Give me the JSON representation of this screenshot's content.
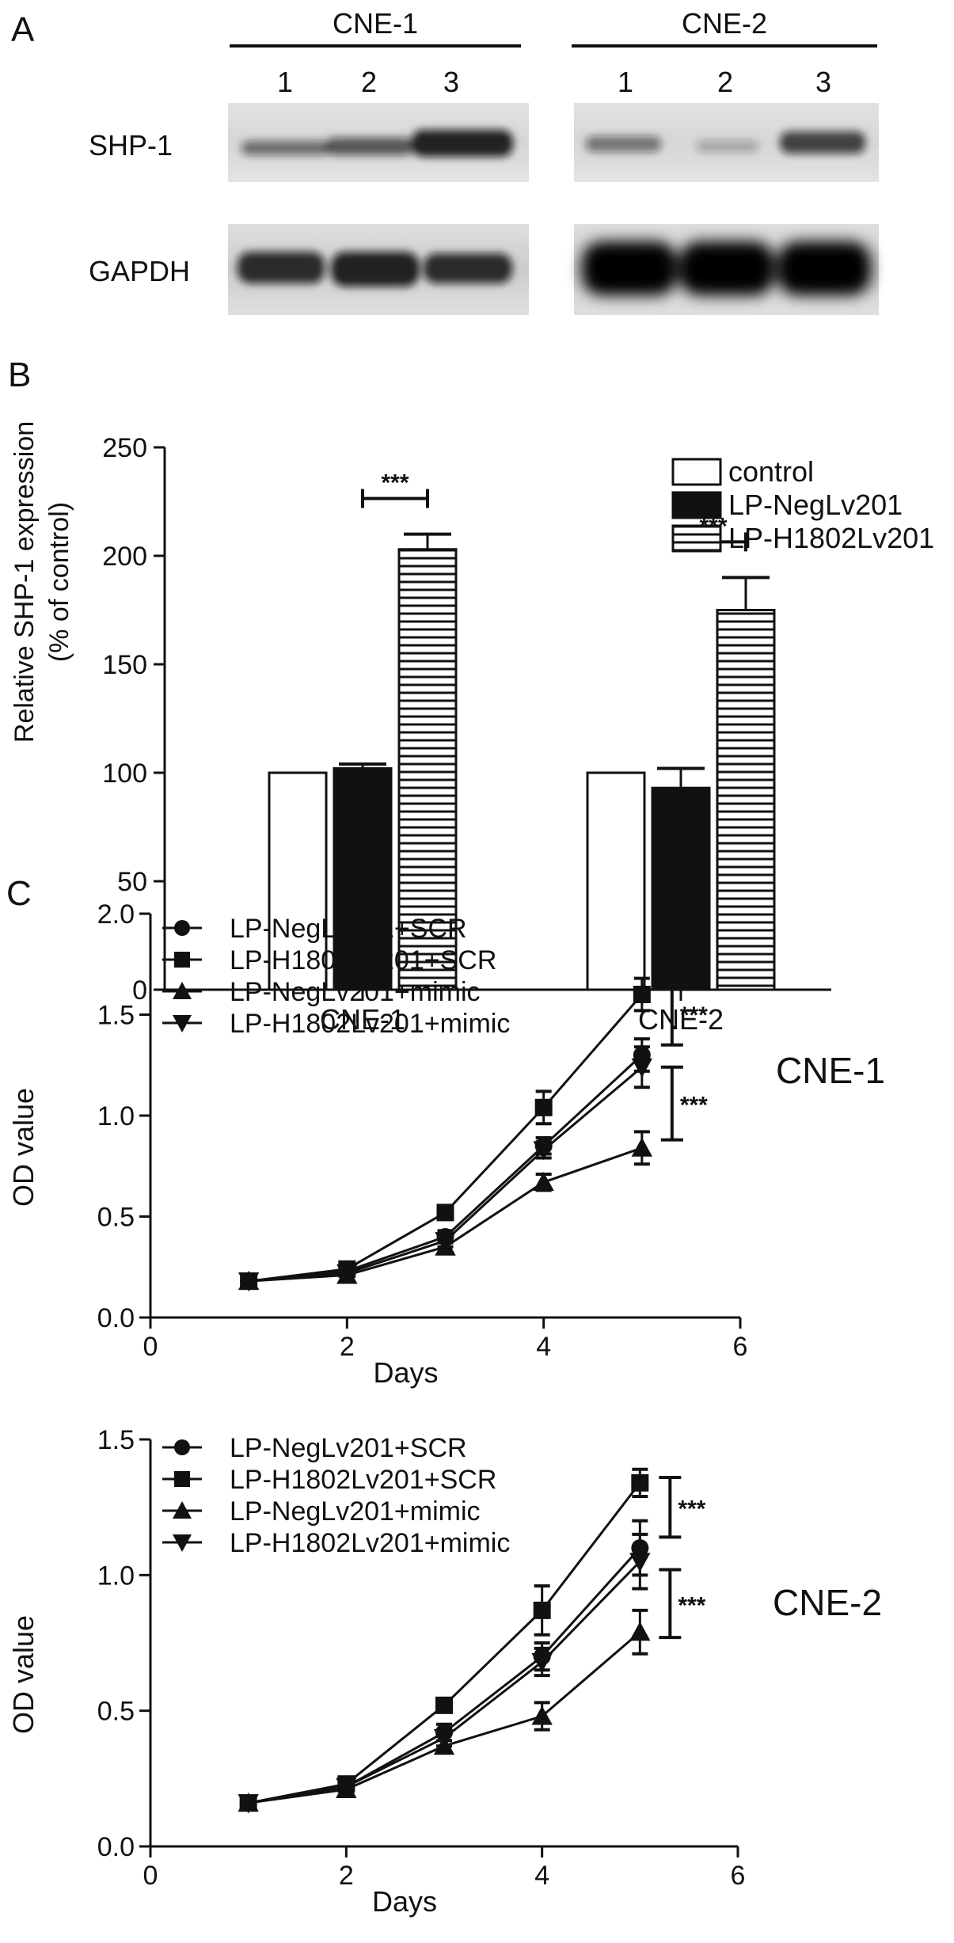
{
  "blot": {
    "panel_label": "A",
    "groups": [
      {
        "name": "CNE-1",
        "lanes": [
          "1",
          "2",
          "3"
        ]
      },
      {
        "name": "CNE-2",
        "lanes": [
          "1",
          "2",
          "3"
        ]
      }
    ],
    "rows": [
      "SHP-1",
      "GAPDH"
    ],
    "band_intensity": {
      "SHP-1": {
        "CNE-1": [
          0.55,
          0.65,
          0.9
        ],
        "CNE-2": [
          0.5,
          0.28,
          0.75
        ]
      },
      "GAPDH": {
        "CNE-1": [
          0.85,
          0.9,
          0.85
        ],
        "CNE-2": [
          1.0,
          1.0,
          1.0
        ]
      }
    }
  },
  "chart_data": [
    {
      "panel_label": "B",
      "type": "bar",
      "categories": [
        "CNE-1",
        "CNE-2"
      ],
      "series": [
        {
          "name": "control",
          "values": [
            100,
            100
          ],
          "errors": [
            0,
            0
          ],
          "fill": "open"
        },
        {
          "name": "LP-NegLv201",
          "values": [
            102,
            93
          ],
          "errors": [
            2,
            9
          ],
          "fill": "solid"
        },
        {
          "name": "LP-H1802Lv201",
          "values": [
            203,
            175
          ],
          "errors": [
            7,
            15
          ],
          "fill": "horizontal-stripes"
        }
      ],
      "significance": [
        {
          "category": "CNE-1",
          "label": "***"
        },
        {
          "category": "CNE-2",
          "label": "***"
        }
      ],
      "ylabel_lines": [
        "Relative SHP-1 expression",
        "(% of control)"
      ],
      "yticks": [
        "0",
        "50",
        "100",
        "150",
        "200",
        "250"
      ],
      "ylim": [
        0,
        250
      ],
      "legend_position": "right"
    },
    {
      "panel_label": "C",
      "type": "line",
      "cell_line": "CNE-1",
      "xlabel": "Days",
      "ylabel": "OD value",
      "xlim": [
        0,
        6
      ],
      "ylim": [
        0,
        2.0
      ],
      "xticks": [
        "0",
        "2",
        "4",
        "6"
      ],
      "yticks": [
        "0.0",
        "0.5",
        "1.0",
        "1.5",
        "2.0"
      ],
      "x": [
        1,
        2,
        3,
        4,
        5
      ],
      "series": [
        {
          "name": "LP-NegLv201+SCR",
          "marker": "circle",
          "values": [
            0.18,
            0.23,
            0.4,
            0.85,
            1.3
          ],
          "errors": [
            0.02,
            0.02,
            0.03,
            0.04,
            0.08
          ]
        },
        {
          "name": "LP-H1802Lv201+SCR",
          "marker": "square",
          "values": [
            0.18,
            0.24,
            0.52,
            1.04,
            1.6
          ],
          "errors": [
            0.02,
            0.02,
            0.02,
            0.08,
            0.08
          ]
        },
        {
          "name": "LP-NegLv201+mimic",
          "marker": "triangle-up",
          "values": [
            0.18,
            0.21,
            0.35,
            0.67,
            0.84
          ],
          "errors": [
            0.02,
            0.02,
            0.03,
            0.04,
            0.08
          ]
        },
        {
          "name": "LP-H1802Lv201+mimic",
          "marker": "triangle-down",
          "values": [
            0.18,
            0.22,
            0.38,
            0.83,
            1.24
          ],
          "errors": [
            0.02,
            0.02,
            0.03,
            0.04,
            0.1
          ]
        }
      ],
      "significance": [
        {
          "y_from": 1.35,
          "y_to": 1.66,
          "label": "***"
        },
        {
          "y_from": 0.88,
          "y_to": 1.24,
          "label": "***"
        }
      ],
      "legend_position": "top-left"
    },
    {
      "type": "line",
      "cell_line": "CNE-2",
      "xlabel": "Days",
      "ylabel": "OD value",
      "xlim": [
        0,
        6
      ],
      "ylim": [
        0,
        1.5
      ],
      "xticks": [
        "0",
        "2",
        "4",
        "6"
      ],
      "yticks": [
        "0.0",
        "0.5",
        "1.0",
        "1.5"
      ],
      "x": [
        1,
        2,
        3,
        4,
        5
      ],
      "series": [
        {
          "name": "LP-NegLv201+SCR",
          "marker": "circle",
          "values": [
            0.16,
            0.22,
            0.42,
            0.7,
            1.1
          ],
          "errors": [
            0.02,
            0.02,
            0.03,
            0.05,
            0.1
          ]
        },
        {
          "name": "LP-H1802Lv201+SCR",
          "marker": "square",
          "values": [
            0.16,
            0.23,
            0.52,
            0.87,
            1.34
          ],
          "errors": [
            0.02,
            0.02,
            0.02,
            0.09,
            0.05
          ]
        },
        {
          "name": "LP-NegLv201+mimic",
          "marker": "triangle-up",
          "values": [
            0.16,
            0.21,
            0.37,
            0.48,
            0.79
          ],
          "errors": [
            0.02,
            0.02,
            0.02,
            0.05,
            0.08
          ]
        },
        {
          "name": "LP-H1802Lv201+mimic",
          "marker": "triangle-down",
          "values": [
            0.16,
            0.22,
            0.4,
            0.68,
            1.05
          ],
          "errors": [
            0.02,
            0.02,
            0.03,
            0.05,
            0.1
          ]
        }
      ],
      "significance": [
        {
          "y_from": 1.14,
          "y_to": 1.36,
          "label": "***"
        },
        {
          "y_from": 0.77,
          "y_to": 1.02,
          "label": "***"
        }
      ],
      "legend_position": "top-left"
    }
  ]
}
